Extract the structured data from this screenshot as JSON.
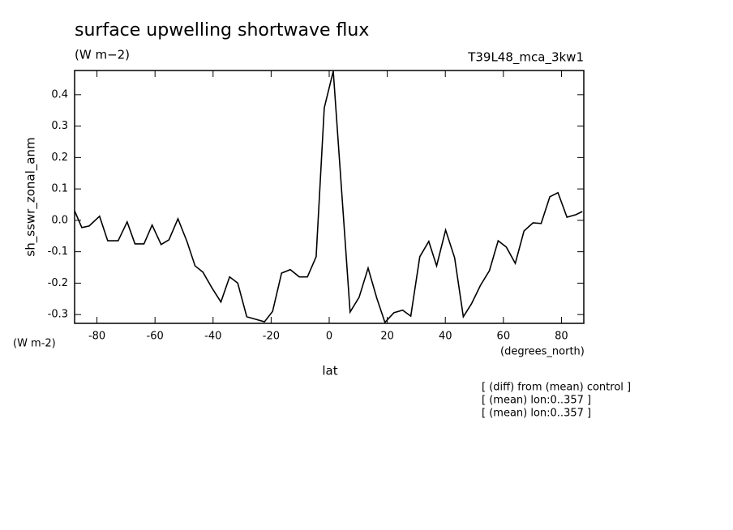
{
  "chart_data": {
    "type": "line",
    "title": "surface upwelling shortwave flux",
    "units": "(W m−2)",
    "dataset": "T39L48_mca_3kw1",
    "y_label": "sh_sswr_zonal_anm",
    "y_units": "(W m-2)",
    "x_label": "lat",
    "x_units": "(degrees_north)",
    "notes": [
      "[ (diff) from (mean) control ]",
      "[ (mean) lon:0..357 ]",
      "[ (mean) lon:0..357 ]"
    ],
    "x": [
      -87.7,
      -85.2,
      -82.7,
      -79.1,
      -76.3,
      -72.7,
      -69.6,
      -66.9,
      -63.8,
      -61.0,
      -57.9,
      -55.2,
      -52.1,
      -49.0,
      -46.2,
      -43.5,
      -40.4,
      -37.3,
      -34.3,
      -31.5,
      -28.4,
      -25.3,
      -22.3,
      -19.5,
      -16.4,
      -13.4,
      -10.3,
      -7.5,
      -4.5,
      -1.7,
      1.4,
      7.2,
      10.3,
      13.4,
      16.4,
      19.2,
      22.3,
      25.3,
      28.1,
      31.2,
      34.3,
      37.0,
      40.1,
      43.2,
      46.2,
      49.0,
      52.1,
      55.2,
      58.2,
      61.0,
      64.1,
      67.1,
      70.2,
      73.0,
      76.0,
      78.8,
      81.9,
      85.0,
      87.2
    ],
    "series": [
      {
        "color": "#000000",
        "values": [
          0.03,
          -0.023,
          -0.018,
          0.013,
          -0.065,
          -0.065,
          -0.005,
          -0.075,
          -0.075,
          -0.015,
          -0.077,
          -0.062,
          0.005,
          -0.067,
          -0.145,
          -0.165,
          -0.215,
          -0.26,
          -0.18,
          -0.2,
          -0.307,
          -0.315,
          -0.323,
          -0.29,
          -0.168,
          -0.157,
          -0.18,
          -0.18,
          -0.116,
          0.358,
          0.475,
          -0.292,
          -0.245,
          -0.152,
          -0.248,
          -0.325,
          -0.294,
          -0.286,
          -0.305,
          -0.116,
          -0.067,
          -0.145,
          -0.031,
          -0.119,
          -0.307,
          -0.266,
          -0.207,
          -0.16,
          -0.065,
          -0.085,
          -0.137,
          -0.034,
          -0.008,
          -0.01,
          0.075,
          0.088,
          0.01,
          0.018,
          0.028
        ]
      }
    ],
    "xlim": [
      -87.7,
      87.7
    ],
    "ylim": [
      -0.328,
      0.477
    ],
    "xticks": [
      -80,
      -60,
      -40,
      -20,
      0,
      20,
      40,
      60,
      80
    ],
    "yticks": [
      0.4,
      0.3,
      0.2,
      0.1,
      {
        "value": 0,
        "label": "0.0"
      },
      -0.1,
      -0.2,
      -0.3
    ]
  }
}
